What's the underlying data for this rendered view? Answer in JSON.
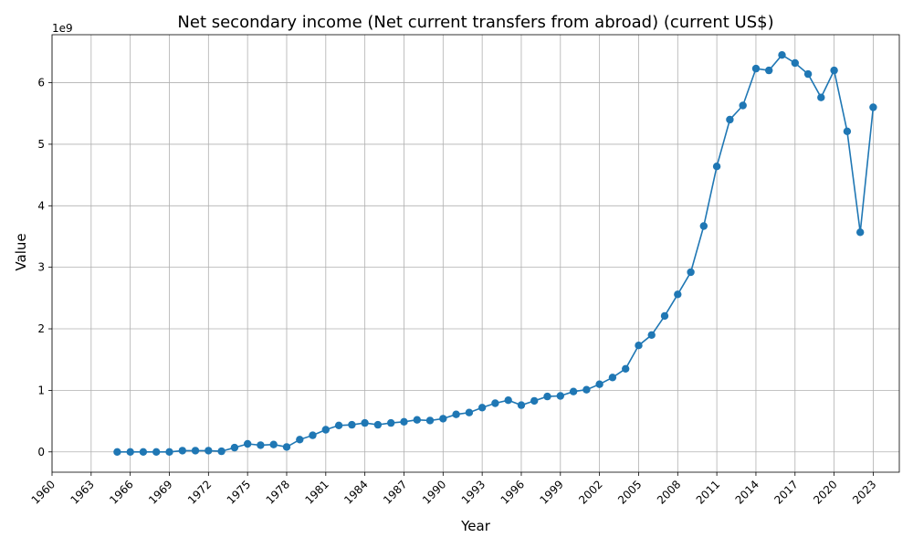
{
  "chart_data": {
    "type": "line",
    "title": "Net secondary income (Net current transfers from abroad) (current US$)",
    "xlabel": "Year",
    "ylabel": "Value",
    "y_offset_label": "1e9",
    "grid": true,
    "xlim": [
      1960,
      2025
    ],
    "ylim": [
      -0.33,
      6.78
    ],
    "y_unit_multiplier": 1000000000,
    "x_ticks": [
      1960,
      1963,
      1966,
      1969,
      1972,
      1975,
      1978,
      1981,
      1984,
      1987,
      1990,
      1993,
      1996,
      1999,
      2002,
      2005,
      2008,
      2011,
      2014,
      2017,
      2020,
      2023
    ],
    "y_ticks": [
      0,
      1,
      2,
      3,
      4,
      5,
      6
    ],
    "series": [
      {
        "color": "#1f77b4",
        "marker": "circle",
        "x": [
          1965,
          1966,
          1967,
          1968,
          1969,
          1970,
          1971,
          1972,
          1973,
          1974,
          1975,
          1976,
          1977,
          1978,
          1979,
          1980,
          1981,
          1982,
          1983,
          1984,
          1985,
          1986,
          1987,
          1988,
          1989,
          1990,
          1991,
          1992,
          1993,
          1994,
          1995,
          1996,
          1997,
          1998,
          1999,
          2000,
          2001,
          2002,
          2003,
          2004,
          2005,
          2006,
          2007,
          2008,
          2009,
          2010,
          2011,
          2012,
          2013,
          2014,
          2015,
          2016,
          2017,
          2018,
          2019,
          2020,
          2021,
          2022,
          2023
        ],
        "values": [
          0.0,
          0.0,
          0.0,
          0.0,
          0.0,
          0.02,
          0.02,
          0.02,
          0.01,
          0.07,
          0.13,
          0.11,
          0.12,
          0.08,
          0.2,
          0.27,
          0.36,
          0.43,
          0.44,
          0.47,
          0.44,
          0.47,
          0.49,
          0.52,
          0.51,
          0.54,
          0.61,
          0.64,
          0.72,
          0.79,
          0.84,
          0.76,
          0.83,
          0.9,
          0.91,
          0.98,
          1.01,
          1.1,
          1.21,
          1.35,
          1.73,
          1.9,
          2.21,
          2.56,
          2.92,
          3.67,
          4.64,
          5.4,
          5.63,
          6.23,
          6.2,
          6.45,
          6.32,
          6.14,
          5.76,
          6.2,
          5.21,
          3.57,
          5.6
        ]
      }
    ]
  }
}
